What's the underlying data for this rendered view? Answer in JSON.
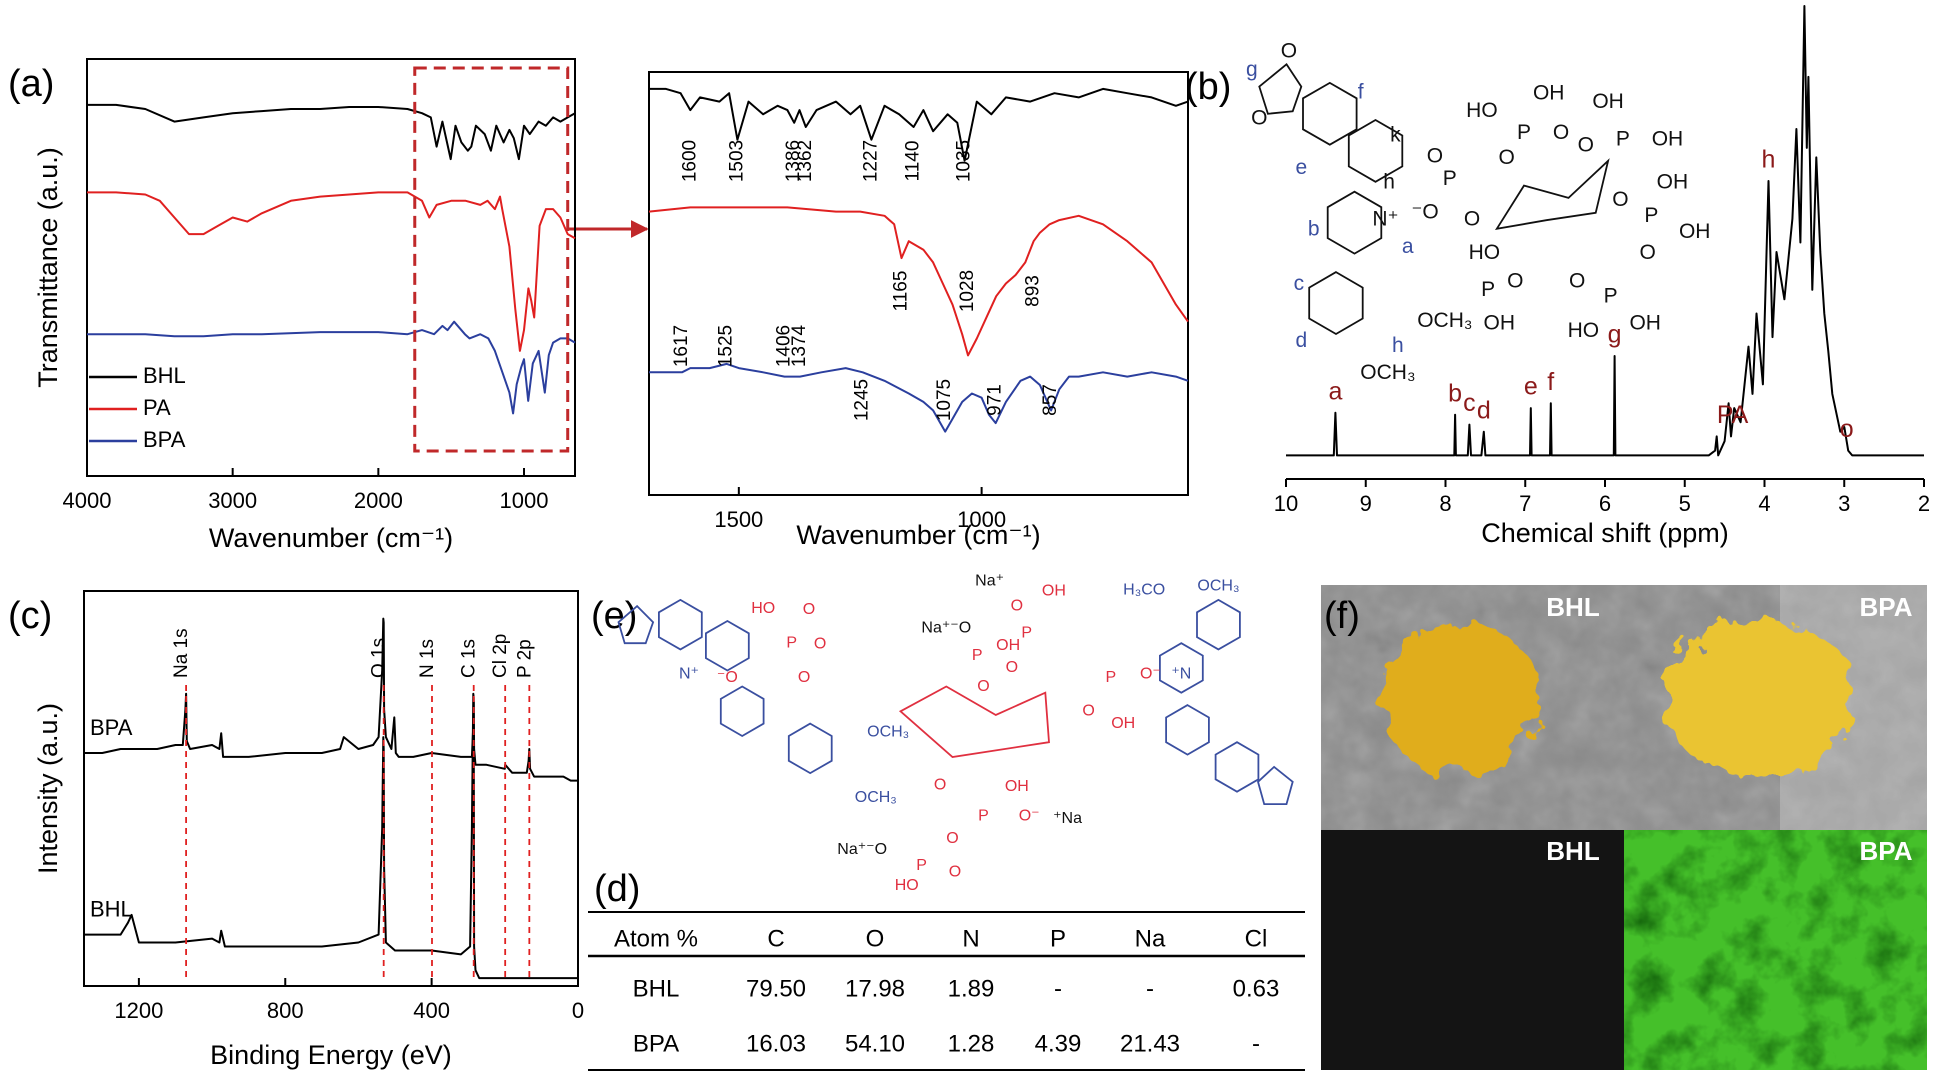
{
  "panel_labels": [
    "(a)",
    "(b)",
    "(c)",
    "(d)",
    "(e)",
    "(f)"
  ],
  "chart_data": [
    {
      "type": "line",
      "xlabel": "Wavenumber (cm⁻¹)",
      "ylabel": "Transmittance (a.u.)",
      "xlim": [
        4000,
        650
      ],
      "xticks": [
        4000,
        3000,
        2000,
        1000
      ],
      "ylim": [
        0,
        100
      ],
      "legend": "lower left",
      "zoom_range": [
        1750,
        700
      ],
      "series": [
        {
          "name": "BHL",
          "color": "#000000",
          "x": [
            4000,
            3800,
            3600,
            3400,
            3200,
            3000,
            2800,
            2600,
            2400,
            2200,
            2000,
            1800,
            1700,
            1640,
            1600,
            1560,
            1503,
            1470,
            1430,
            1386,
            1362,
            1330,
            1270,
            1227,
            1190,
            1140,
            1100,
            1070,
            1035,
            1000,
            960,
            900,
            850,
            800,
            750,
            700,
            650
          ],
          "values": [
            89,
            89,
            88,
            85,
            86,
            87,
            87.5,
            88,
            88,
            88.5,
            88.5,
            88,
            87,
            86,
            79,
            85,
            76,
            84,
            80,
            78,
            79,
            84,
            82,
            78,
            84,
            80,
            83,
            81,
            76,
            84,
            82,
            85,
            84,
            86,
            85,
            86,
            87
          ]
        },
        {
          "name": "PA",
          "color": "#e02020",
          "x": [
            4000,
            3800,
            3600,
            3500,
            3400,
            3300,
            3200,
            3100,
            3000,
            2900,
            2800,
            2600,
            2400,
            2200,
            2000,
            1800,
            1700,
            1650,
            1600,
            1500,
            1400,
            1300,
            1250,
            1200,
            1165,
            1150,
            1100,
            1060,
            1028,
            1000,
            970,
            950,
            930,
            900,
            893,
            850,
            800,
            750,
            700,
            650
          ],
          "values": [
            68,
            68,
            67.5,
            66,
            62,
            58,
            58,
            60,
            62,
            61,
            63,
            66,
            67,
            67.5,
            68,
            68,
            66,
            62,
            65,
            66,
            66,
            65,
            66,
            64,
            67,
            64,
            55,
            40,
            30,
            35,
            45,
            42,
            38,
            56,
            60,
            64,
            64,
            62,
            58,
            57
          ]
        },
        {
          "name": "BPA",
          "color": "#2b3f9e",
          "x": [
            4000,
            3600,
            3400,
            3200,
            3000,
            2800,
            2400,
            2000,
            1800,
            1700,
            1617,
            1560,
            1525,
            1480,
            1406,
            1374,
            1300,
            1245,
            1200,
            1150,
            1100,
            1075,
            1050,
            1020,
            1000,
            971,
            940,
            900,
            857,
            830,
            800,
            750,
            700,
            650
          ],
          "values": [
            34,
            34,
            33.5,
            33.5,
            34,
            34,
            34.5,
            34.5,
            34,
            35,
            34,
            36,
            35,
            37,
            34,
            33,
            34,
            33,
            30,
            25,
            20,
            15,
            22,
            26,
            28,
            18,
            27,
            30,
            20,
            29,
            32,
            33,
            33,
            32
          ]
        }
      ]
    },
    {
      "type": "line",
      "xlabel": "Wavenumber (cm⁻¹)",
      "xlim": [
        1685,
        575
      ],
      "xticks": [
        1500,
        1000
      ],
      "ylim": [
        0,
        100
      ],
      "series": [
        {
          "color": "#000000",
          "x": [
            1685,
            1650,
            1620,
            1600,
            1580,
            1540,
            1520,
            1503,
            1480,
            1450,
            1420,
            1400,
            1386,
            1375,
            1362,
            1340,
            1300,
            1270,
            1250,
            1227,
            1200,
            1170,
            1140,
            1120,
            1100,
            1070,
            1050,
            1035,
            1010,
            980,
            950,
            900,
            850,
            800,
            750,
            700,
            650,
            600,
            575
          ],
          "values": [
            96,
            96,
            95,
            91,
            94,
            93,
            95,
            84,
            93,
            90,
            92,
            91,
            88,
            91,
            87,
            91,
            93,
            90,
            92,
            84,
            92,
            90,
            87,
            91,
            86,
            90,
            88,
            79,
            93,
            90,
            94,
            93,
            95,
            94,
            96,
            95,
            94,
            92,
            93
          ]
        },
        {
          "color": "#e02020",
          "x": [
            1685,
            1600,
            1500,
            1400,
            1300,
            1250,
            1200,
            1180,
            1165,
            1150,
            1120,
            1100,
            1080,
            1060,
            1040,
            1028,
            1010,
            990,
            970,
            950,
            930,
            910,
            893,
            880,
            860,
            840,
            800,
            750,
            700,
            650,
            600,
            575
          ],
          "values": [
            67,
            68,
            68,
            68,
            67,
            67,
            66,
            64,
            56,
            60,
            58,
            55,
            50,
            45,
            38,
            33,
            37,
            42,
            47,
            50,
            52,
            55,
            60,
            62,
            64,
            65,
            66,
            64,
            60,
            55,
            45,
            41
          ]
        },
        {
          "color": "#2b3f9e",
          "x": [
            1685,
            1617,
            1600,
            1560,
            1525,
            1500,
            1450,
            1406,
            1374,
            1330,
            1280,
            1245,
            1200,
            1150,
            1120,
            1100,
            1075,
            1060,
            1040,
            1020,
            1000,
            985,
            971,
            950,
            920,
            900,
            880,
            857,
            840,
            820,
            800,
            750,
            700,
            650,
            600,
            575
          ],
          "values": [
            29,
            29,
            30,
            30,
            31,
            30,
            29,
            28,
            28,
            29,
            30,
            29,
            27,
            24,
            22,
            20,
            15,
            18,
            22,
            24,
            23,
            19,
            17,
            22,
            27,
            28,
            26,
            20,
            25,
            28,
            28,
            29,
            28,
            29,
            28,
            27
          ]
        }
      ],
      "peak_labels": [
        [
          1600,
          1503,
          1386,
          1362,
          1227,
          1140,
          1035
        ],
        [
          1165,
          1028,
          893
        ],
        [
          1617,
          1525,
          1406,
          1374,
          1245,
          1075,
          971,
          857
        ]
      ]
    },
    {
      "type": "line",
      "xlabel": "Chemical shift (ppm)",
      "xlim": [
        10,
        2
      ],
      "xticks": [
        10,
        9,
        8,
        7,
        6,
        5,
        4,
        3,
        2
      ],
      "ylim": [
        0,
        100
      ],
      "series": [
        {
          "color": "#000000",
          "x": [
            10,
            9.45,
            9.4,
            9.38,
            9.36,
            9.3,
            7.92,
            7.89,
            7.88,
            7.87,
            7.8,
            7.72,
            7.7,
            7.68,
            7.55,
            7.52,
            7.5,
            7.0,
            6.94,
            6.93,
            6.92,
            6.75,
            6.69,
            6.68,
            6.67,
            6.0,
            5.89,
            5.88,
            5.87,
            4.7,
            4.62,
            4.6,
            4.58,
            4.5,
            4.45,
            4.42,
            4.38,
            4.3,
            4.2,
            4.15,
            4.1,
            4.02,
            3.95,
            3.9,
            3.85,
            3.75,
            3.65,
            3.6,
            3.55,
            3.5,
            3.47,
            3.45,
            3.4,
            3.35,
            3.3,
            3.25,
            3.2,
            3.15,
            3.1,
            3.05,
            3.0,
            2.95,
            2.9,
            2.5,
            2
          ],
          "values": [
            5,
            5,
            5,
            14,
            5,
            5,
            5,
            5,
            13.6,
            5,
            5,
            5,
            11.5,
            5,
            5,
            10,
            5,
            5,
            5,
            15,
            5,
            5,
            5,
            16,
            5,
            5,
            5,
            26,
            5,
            5,
            6,
            9,
            5,
            8,
            16,
            9,
            15,
            12,
            28,
            18,
            35,
            20,
            63,
            30,
            48,
            38,
            55,
            74,
            50,
            100,
            70,
            85,
            40,
            68,
            48,
            35,
            27,
            18,
            14,
            10,
            11,
            6,
            5,
            5,
            5
          ]
        }
      ],
      "peak_labels": [
        {
          "label": "a",
          "x": 9.38
        },
        {
          "label": "b",
          "x": 7.88
        },
        {
          "label": "c",
          "x": 7.7
        },
        {
          "label": "d",
          "x": 7.52
        },
        {
          "label": "e",
          "x": 6.93
        },
        {
          "label": "f",
          "x": 6.68
        },
        {
          "label": "g",
          "x": 5.88
        },
        {
          "label": "PA",
          "x": 4.4
        },
        {
          "label": "h",
          "x": 3.95
        },
        {
          "label": "o",
          "x": 2.97
        }
      ]
    },
    {
      "type": "line",
      "xlabel": "Binding Energy (eV)",
      "ylabel": "Intensity (a.u.)",
      "xlim": [
        1350,
        0
      ],
      "xticks": [
        1200,
        800,
        400,
        0
      ],
      "ylim": [
        0,
        100
      ],
      "legend": "inline",
      "series": [
        {
          "name": "BPA",
          "color": "#000000",
          "x": [
            1350,
            1300,
            1250,
            1200,
            1150,
            1100,
            1080,
            1073,
            1071,
            1069,
            1060,
            1000,
            980,
            975,
            970,
            950,
            900,
            800,
            700,
            650,
            640,
            600,
            560,
            545,
            535,
            532,
            531,
            530,
            525,
            510,
            502,
            498,
            490,
            450,
            400,
            320,
            290,
            286,
            285,
            284,
            280,
            250,
            200,
            199,
            180,
            140,
            135,
            133,
            131,
            120,
            80,
            40,
            20,
            0
          ],
          "values": [
            59,
            59,
            60,
            60,
            60,
            61,
            61,
            70,
            74,
            62,
            60,
            61,
            60,
            64,
            58,
            58,
            58,
            59,
            59,
            60,
            63,
            60,
            61,
            63,
            80,
            93,
            92,
            70,
            63,
            60,
            68,
            59,
            58,
            58,
            59,
            58,
            58,
            66,
            72,
            60,
            56,
            56,
            55,
            56,
            54,
            54,
            57,
            60,
            55,
            53,
            53,
            53,
            52,
            52
          ]
        },
        {
          "name": "BHL",
          "color": "#000000",
          "x": [
            1350,
            1250,
            1230,
            1220,
            1200,
            1150,
            1100,
            1000,
            980,
            975,
            965,
            900,
            800,
            700,
            600,
            545,
            535,
            532,
            531,
            530,
            525,
            500,
            450,
            400,
            320,
            295,
            290,
            286,
            285,
            284,
            280,
            270,
            250,
            200,
            100,
            50,
            0
          ],
          "values": [
            13,
            13,
            16,
            18,
            11,
            11,
            11,
            12,
            11,
            14,
            10,
            10,
            10,
            10,
            11,
            13,
            40,
            63,
            60,
            30,
            11,
            9,
            9,
            9,
            8,
            10,
            40,
            74,
            73,
            10,
            4,
            2,
            2,
            2,
            2,
            2,
            2
          ]
        }
      ],
      "ref_lines": [
        {
          "label": "Na 1s",
          "x": 1071
        },
        {
          "label": "O 1s",
          "x": 531
        },
        {
          "label": "N 1s",
          "x": 399
        },
        {
          "label": "C 1s",
          "x": 285
        },
        {
          "label": "Cl 2p",
          "x": 199
        },
        {
          "label": "P 2p",
          "x": 133
        }
      ]
    }
  ],
  "table": {
    "header": [
      "Atom %",
      "C",
      "O",
      "N",
      "P",
      "Na",
      "Cl"
    ],
    "rows": [
      [
        "BHL",
        "79.50",
        "17.98",
        "1.89",
        "-",
        "-",
        "0.63"
      ],
      [
        "BPA",
        "16.03",
        "54.10",
        "1.28",
        "4.39",
        "21.43",
        "-"
      ]
    ]
  },
  "structures": {
    "b": [
      "g",
      "f",
      "e",
      "k",
      "h",
      "b",
      "a",
      "c",
      "d",
      "h",
      "O",
      "O",
      "N⁺",
      "⁻O",
      "P",
      "O",
      "O",
      "OCH₃",
      "OCH₃",
      "HO",
      "OH",
      "P",
      "O",
      "O",
      "OH",
      "P",
      "OH",
      "O",
      "OH",
      "P",
      "OH",
      "O",
      "O",
      "P",
      "OH",
      "O",
      "HO",
      "HO",
      "P",
      "O",
      "OH"
    ],
    "e": [
      "N⁺",
      "⁻O",
      "HO",
      "O",
      "P",
      "O",
      "O",
      "Na⁺",
      "OH",
      "O",
      "P",
      "O",
      "Na⁺⁻O",
      "P",
      "OH",
      "O",
      "O",
      "P",
      "O⁻",
      "OH",
      "OCH₃",
      "OCH₃",
      "H₃CO",
      "OCH₃",
      "⁺N",
      "OH",
      "P",
      "O⁻",
      "⁺Na",
      "Na⁺⁻O",
      "P",
      "O",
      "HO",
      "O",
      "O"
    ]
  },
  "photos": {
    "labels": [
      "BHL",
      "BPA",
      "BHL",
      "BPA"
    ]
  }
}
